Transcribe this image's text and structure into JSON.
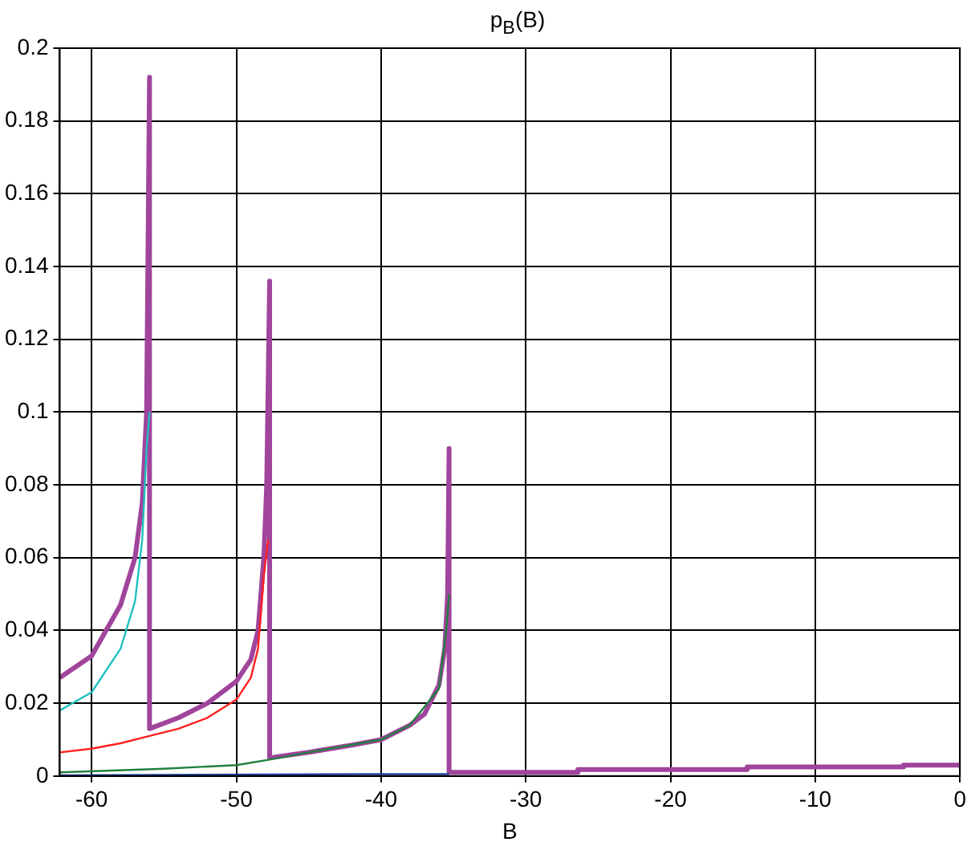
{
  "chart_data": {
    "type": "line",
    "title": "p$_{B}$(B)",
    "xlabel": "B",
    "xlim": [
      -62.2,
      0
    ],
    "xticks": [
      -60,
      -50,
      -40,
      -30,
      -20,
      -10,
      0
    ],
    "ylim": [
      0,
      0.2
    ],
    "yticks": [
      0,
      0.02,
      0.04,
      0.06,
      0.08,
      0.1,
      0.12,
      0.14,
      0.16,
      0.18,
      0.2
    ],
    "grid": true,
    "legend": false,
    "marker": "none",
    "line_style": "solid",
    "series": [
      {
        "color": "#20c0c0",
        "x": [
          -62.2,
          -60,
          -58,
          -57,
          -56.5,
          -56.2,
          -56.0
        ],
        "values": [
          0.018,
          0.023,
          0.035,
          0.048,
          0.065,
          0.09,
          0.1
        ]
      },
      {
        "color": "#ff2020",
        "x": [
          -62.2,
          -60,
          -58,
          -56,
          -54,
          -52,
          -50,
          -49,
          -48.5,
          -48.1,
          -47.8
        ],
        "values": [
          0.0065,
          0.0075,
          0.009,
          0.011,
          0.013,
          0.016,
          0.021,
          0.027,
          0.035,
          0.055,
          0.065
        ]
      },
      {
        "color": "#208040",
        "x": [
          -62.2,
          -55,
          -50,
          -47.7,
          -45,
          -40,
          -38,
          -36,
          -35.5,
          -35.3
        ],
        "values": [
          0.001,
          0.002,
          0.003,
          0.0045,
          0.0065,
          0.01,
          0.014,
          0.024,
          0.04,
          0.05
        ]
      },
      {
        "color": "#2040a0",
        "x": [
          -62.2,
          -41,
          -35.3
        ],
        "values": [
          0.0002,
          0.0005,
          0.0005
        ]
      },
      {
        "color": "#a0449c",
        "x": [
          -62.2,
          -60,
          -58,
          -57,
          -56.5,
          -56.2,
          -56.0,
          -56.0,
          -54,
          -52,
          -50,
          -49,
          -48.5,
          -48.1,
          -47.9,
          -47.7,
          -47.7,
          -45,
          -42,
          -40,
          -38,
          -37,
          -36,
          -35.6,
          -35.4,
          -35.3,
          -35.3,
          -26.4,
          -26.4,
          -14.7,
          -14.7,
          -3.9,
          -3.9,
          0
        ],
        "values": [
          0.027,
          0.033,
          0.047,
          0.06,
          0.075,
          0.1,
          0.192,
          0.013,
          0.016,
          0.02,
          0.026,
          0.032,
          0.04,
          0.06,
          0.08,
          0.136,
          0.005,
          0.0065,
          0.0085,
          0.01,
          0.014,
          0.017,
          0.025,
          0.035,
          0.05,
          0.09,
          0.001,
          0.001,
          0.0018,
          0.0018,
          0.0025,
          0.0025,
          0.003,
          0.003
        ]
      }
    ]
  }
}
